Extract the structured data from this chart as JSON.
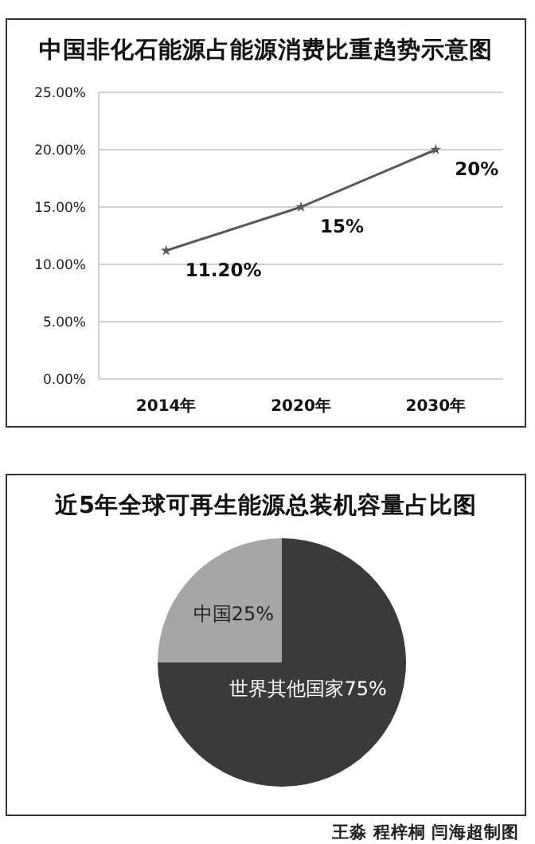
{
  "chart_data": [
    {
      "type": "line",
      "title": "中国非化石能源占能源消费比重趋势示意图",
      "categories": [
        "2014年",
        "2020年",
        "2030年"
      ],
      "series": [
        {
          "color": "#595959",
          "values": [
            11.2,
            15,
            20
          ],
          "value_labels": [
            "11.20%",
            "15%",
            "20%"
          ]
        }
      ],
      "ylim": [
        0,
        25
      ],
      "yticks": [
        {
          "value": 0,
          "label": "0.00%"
        },
        {
          "value": 5,
          "label": "5.00%"
        },
        {
          "value": 10,
          "label": "10.00%"
        },
        {
          "value": 15,
          "label": "15.00%"
        },
        {
          "value": 20,
          "label": "20.00%"
        },
        {
          "value": 25,
          "label": "25.00%"
        }
      ],
      "grid": "y",
      "marker": "star",
      "line_style": "solid"
    },
    {
      "type": "pie",
      "title": "近5年全球可再生能源总装机容量占比图",
      "categories": [
        "中国",
        "世界其他国家"
      ],
      "values": [
        25,
        75
      ],
      "value_labels": [
        "25%",
        "75%"
      ],
      "colors": [
        "#a6a6a6",
        "#3a3a3a"
      ],
      "annotations": [
        "王淼 程梓桐 闫海超制图"
      ]
    }
  ]
}
